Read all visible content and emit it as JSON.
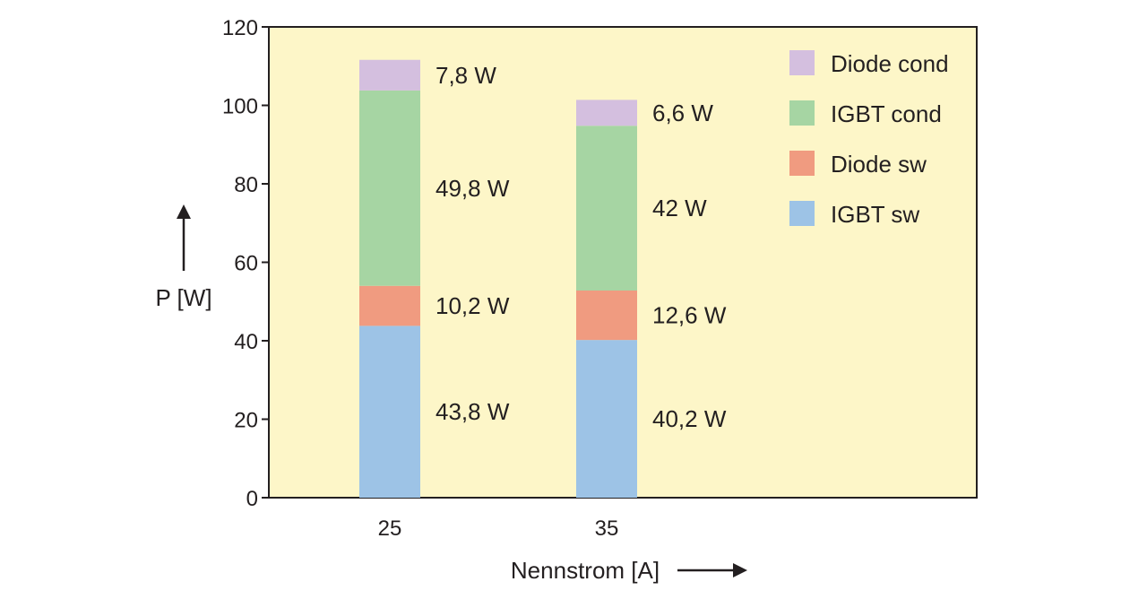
{
  "chart_data": {
    "type": "bar",
    "stacked": true,
    "categories": [
      "25",
      "35"
    ],
    "series": [
      {
        "name": "IGBT sw",
        "values": [
          43.8,
          40.2
        ],
        "labels": [
          "43,8 W",
          "40,2 W"
        ],
        "color": "#9dc3e6"
      },
      {
        "name": "Diode sw",
        "values": [
          10.2,
          12.6
        ],
        "labels": [
          "10,2 W",
          "12,6 W"
        ],
        "color": "#f09b80"
      },
      {
        "name": "IGBT cond",
        "values": [
          49.8,
          42
        ],
        "labels": [
          "49,8 W",
          "42 W"
        ],
        "color": "#a6d5a3"
      },
      {
        "name": "Diode cond",
        "values": [
          7.8,
          6.6
        ],
        "labels": [
          "7,8 W",
          "6,6 W"
        ],
        "color": "#d4bfdf"
      }
    ],
    "legend_order": [
      "Diode cond",
      "IGBT cond",
      "Diode sw",
      "IGBT sw"
    ],
    "yticks": [
      "0",
      "20",
      "40",
      "60",
      "80",
      "100",
      "120"
    ],
    "ylim": [
      0,
      120
    ],
    "ylabel": "P [W]",
    "xlabel": "Nennstrom [A]",
    "legend_position": "top-right",
    "grid": false,
    "background_color": "#fdf6c8"
  }
}
